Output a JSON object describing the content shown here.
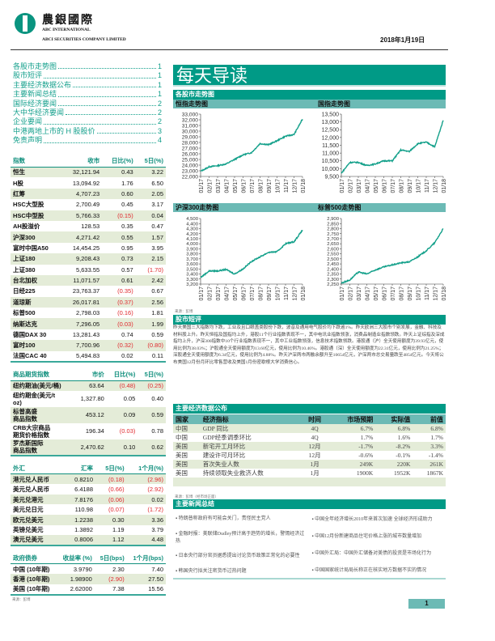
{
  "header": {
    "logo_cn": "農銀國際",
    "logo_en1": "ABC INTERNATIONAL",
    "logo_en2": "ABCI SECURITIES COMPANY LIMITED",
    "date": "2018年1月19日"
  },
  "toc": [
    {
      "label": "各股市走势图",
      "page": "1"
    },
    {
      "label": "股市短评",
      "page": "1"
    },
    {
      "label": "主要经济数据公布",
      "page": "1"
    },
    {
      "label": "主要新闻总结",
      "page": "1"
    },
    {
      "label": "国际经济要闻",
      "page": "2"
    },
    {
      "label": "大中华经济要闻",
      "page": "2"
    },
    {
      "label": "企业要闻",
      "page": "2"
    },
    {
      "label": "中港两地上市的 H 股股价",
      "page": "3"
    },
    {
      "label": "免责声明",
      "page": "4"
    }
  ],
  "index_table": {
    "headers": [
      "指数",
      "收市",
      "日比(%)",
      "5日(%)"
    ],
    "rows": [
      [
        "恒生",
        "32,121.94",
        "0.43",
        "3.22"
      ],
      [
        "H股",
        "13,094.92",
        "1.76",
        "6.50"
      ],
      [
        "红筹",
        "4,707.23",
        "0.60",
        "2.05"
      ],
      [
        "HSC大型股",
        "2,700.49",
        "0.45",
        "3.17"
      ],
      [
        "HSC中型股",
        "5,766.33",
        "(0.15)",
        "0.04"
      ],
      [
        "AH股溢价",
        "128.53",
        "0.35",
        "0.47"
      ],
      [
        "沪深300",
        "4,271.42",
        "0.55",
        "1.57"
      ],
      [
        "富时中国A50",
        "14,454.25",
        "0.95",
        "3.95"
      ],
      [
        "上证180",
        "9,208.43",
        "0.73",
        "2.15"
      ],
      [
        "上证380",
        "5,633.55",
        "0.57",
        "(1.70)"
      ],
      [
        "台北加权",
        "11,071.57",
        "0.61",
        "2.42"
      ],
      [
        "日经225",
        "23,763.37",
        "(0.35)",
        "0.67"
      ],
      [
        "道琼斯",
        "26,017.81",
        "(0.37)",
        "2.56"
      ],
      [
        "标普500",
        "2,798.03",
        "(0.16)",
        "1.81"
      ],
      [
        "纳斯达克",
        "7,296.05",
        "(0.03)",
        "1.99"
      ],
      [
        "德国DAX 30",
        "13,281.43",
        "0.74",
        "0.59"
      ],
      [
        "富时100",
        "7,700.96",
        "(0.32)",
        "(0.80)"
      ],
      [
        "法国CAC 40",
        "5,494.83",
        "0.02",
        "0.11"
      ]
    ]
  },
  "commodity_table": {
    "headers": [
      "商品期货指数",
      "市价",
      "日比(%)",
      "5日(%)"
    ],
    "rows": [
      [
        "纽约期油(美元/桶)",
        "63.64",
        "(0.48)",
        "(0.25)"
      ],
      [
        "纽约期金(美元/t oz)",
        "1,327.80",
        "0.05",
        "0.40"
      ],
      [
        "标普高盛 商品指数",
        "453.12",
        "0.09",
        "0.59"
      ],
      [
        "CRB大宗商品 期货价格指数",
        "196.34",
        "(0.03)",
        "0.78"
      ],
      [
        "罗杰斯国际 商品指数",
        "2,470.62",
        "0.10",
        "0.62"
      ]
    ]
  },
  "fx_table": {
    "headers": [
      "外汇",
      "汇率",
      "5日(%)",
      "1个月(%)"
    ],
    "rows": [
      [
        "港元兑人民币",
        "0.8210",
        "(0.18)",
        "(2.96)"
      ],
      [
        "美元兑人民币",
        "6.4188",
        "(0.66)",
        "(2.92)"
      ],
      [
        "美元兑港元",
        "7.8176",
        "(0.06)",
        "0.02"
      ],
      [
        "美元兑日元",
        "110.98",
        "(0.07)",
        "(1.72)"
      ],
      [
        "欧元兑美元",
        "1.2238",
        "0.30",
        "3.36"
      ],
      [
        "英镑兑美元",
        "1.3892",
        "1.19",
        "3.79"
      ],
      [
        "澳元兑美元",
        "0.8006",
        "1.12",
        "4.48"
      ]
    ]
  },
  "bond_table": {
    "headers": [
      "政府债券",
      "收益率 (%)",
      "5日(bps)",
      "1个月(bps)"
    ],
    "rows": [
      [
        "中国 (10年期)",
        "3.9790",
        "2.30",
        "7.40"
      ],
      [
        "香港 (10年期)",
        "1.98900",
        "(2.90)",
        "27.50"
      ],
      [
        "美国 (10年期)",
        "2.62000",
        "7.38",
        "15.56"
      ]
    ]
  },
  "left_source": "来源：彭博",
  "main": {
    "banner": "每天导读",
    "market_charts_title": "各股市走势图",
    "chart_source": "来源：彭博",
    "commentary_title": "股市短评",
    "commentary": "昨天美国三大指数均下跌，工业及且口眼盖类股份下跌，波音及通用电气股价均下跌逾1%。昨天欧洲三大股市个别发展，金融、科技及材料股上升。昨天恒指及国指均上升，港股11个行业指数表现不一，其中电讯业指数领涨，消费品制造业指数领跌。昨天上证综指及深成指均上升，沪深300指数中10个行业指数表现不一，其中工业指数领涨，信息技术指数领跌。港股通（沪）全天使用额度为39.93亿元，使用比例为38.03%；沪股通全天使用额度为13.60亿元，使用比例为10.46%。港股通（深）全天使用额度为22.31亿元，使用比例为21.25%；深股通全天使用额度为6.34亿元，使用比例为4.88%。昨天沪深两市两融余额升至10654亿元，沪深两市总交易量跌至4854亿元。今天将公布美国12月份月环比零售营收及美国1月份密歇根大学消费信心。",
    "econ_title": "主要经济数据公布",
    "econ_headers": [
      "国家",
      "经济指标",
      "时间",
      "市场预期",
      "实际值",
      "前值"
    ],
    "econ_rows": [
      [
        "中国",
        "GDP 同比",
        "4Q",
        "6.7%",
        "6.8%",
        "6.8%"
      ],
      [
        "中国",
        "GDP经季调季环比",
        "4Q",
        "1.7%",
        "1.6%",
        "1.7%"
      ],
      [
        "美国",
        "新宅开工月环比",
        "12月",
        "-1.7%",
        "-8.2%",
        "3.3%"
      ],
      [
        "美国",
        "建设许可月环比",
        "12月",
        "-0.6%",
        "-0.1%",
        "-1.4%"
      ],
      [
        "美国",
        "首次失业人数",
        "1月",
        "249K",
        "220K",
        "261K"
      ],
      [
        "美国",
        "持续领取失业救济人数",
        "1月",
        "1900K",
        "1952K",
        "1867K"
      ]
    ],
    "econ_source": "来源：彭博（经市场正面）",
    "news_title": "主要新闻总结",
    "news_left": [
      "特朗普称政府有可能会关门，责怪民主党人",
      "金融时报：美联储Dudley预计高于趋势的增长，警惕经济过热",
      "日本央行部分官员据悉提出讨论货币政策正常化的必要性",
      "韩国央行拟关注密货币过热问题"
    ],
    "news_right": [
      "中国全年经济增长2010年来首次加速 全球经济形成助力",
      "中国12月份新建商品住宅价格上涨的城市数量增加",
      "中国外汇局：中国外汇储备对美债的投资是市场化行为",
      "中国国家统计局局长称正在核实地方数据不实的情况"
    ]
  },
  "page_number": "1",
  "colors": {
    "brand": "#009a86",
    "sub": "#6cbab5",
    "stripe": "#e4ecd8",
    "negative": "#e0282d",
    "line": "#13a08a"
  },
  "chart_data": [
    {
      "type": "line",
      "title": "恒指走势图",
      "ylim": [
        22000,
        33000
      ],
      "ystep": 1000,
      "x": [
        "01/17",
        "02/17",
        "03/17",
        "04/17",
        "05/17",
        "06/17",
        "07/17",
        "08/17",
        "09/17",
        "10/17",
        "11/17",
        "12/17",
        "01/18"
      ],
      "values": [
        22900,
        23700,
        23900,
        24200,
        25000,
        25800,
        26200,
        27800,
        27600,
        28300,
        29100,
        29400,
        32100
      ]
    },
    {
      "type": "line",
      "title": "国指走势图",
      "ylim": [
        9500,
        13500
      ],
      "ystep": 500,
      "x": [
        "01/17",
        "02/17",
        "03/17",
        "04/17",
        "05/17",
        "06/17",
        "07/17",
        "08/17",
        "09/17",
        "10/17",
        "11/17",
        "12/17",
        "01/18"
      ],
      "values": [
        9700,
        10400,
        10400,
        10200,
        10300,
        10500,
        10500,
        11200,
        11100,
        11600,
        11700,
        11400,
        13100
      ]
    },
    {
      "type": "line",
      "title": "沪深300走势图",
      "ylim": [
        3200,
        4500
      ],
      "ystep": 100,
      "x": [
        "01/17",
        "02/17",
        "03/17",
        "04/17",
        "05/17",
        "06/17",
        "07/17",
        "08/17",
        "09/17",
        "10/17",
        "11/17",
        "12/17",
        "01/18"
      ],
      "values": [
        3330,
        3460,
        3460,
        3490,
        3400,
        3500,
        3650,
        3740,
        3830,
        3840,
        4000,
        4040,
        4270
      ]
    },
    {
      "type": "line",
      "title": "标普500走势图",
      "ylim": [
        2250,
        2900
      ],
      "ystep": 50,
      "x": [
        "01/17",
        "02/17",
        "03/17",
        "04/17",
        "05/17",
        "06/17",
        "07/17",
        "08/17",
        "09/17",
        "10/17",
        "11/17",
        "12/17",
        "01/18"
      ],
      "values": [
        2260,
        2290,
        2370,
        2350,
        2390,
        2420,
        2440,
        2460,
        2470,
        2520,
        2580,
        2660,
        2800
      ]
    }
  ]
}
